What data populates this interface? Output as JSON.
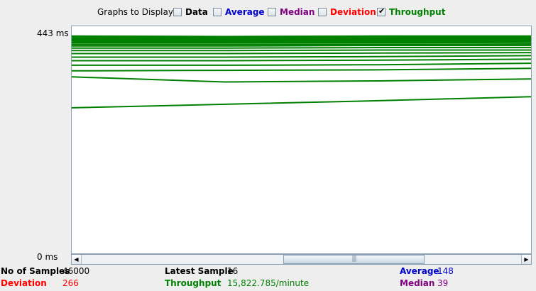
{
  "legend": {
    "title": "Graphs to Display",
    "items": [
      {
        "key": "data",
        "label": "Data",
        "checked": false,
        "color": "#000000"
      },
      {
        "key": "average",
        "label": "Average",
        "checked": false,
        "color": "#0000cc"
      },
      {
        "key": "median",
        "label": "Median",
        "checked": false,
        "color": "#800080"
      },
      {
        "key": "deviation",
        "label": "Deviation",
        "checked": false,
        "color": "#ff0000"
      },
      {
        "key": "throughput",
        "label": "Throughput",
        "checked": true,
        "color": "#008000"
      }
    ]
  },
  "axis": {
    "max_label": "443 ms",
    "min_label": "0 ms"
  },
  "chart_data": {
    "type": "line",
    "ylim": [
      0,
      443
    ],
    "series_color": "#008000",
    "series": [
      {
        "values": [
          430,
          429,
          430,
          430
        ]
      },
      {
        "values": [
          426,
          426,
          426,
          427
        ]
      },
      {
        "values": [
          423,
          423,
          423,
          424
        ]
      },
      {
        "values": [
          420,
          420,
          420,
          421
        ]
      },
      {
        "values": [
          417,
          417,
          417,
          418
        ]
      },
      {
        "values": [
          414,
          414,
          414,
          415
        ]
      },
      {
        "values": [
          411,
          411,
          412,
          412
        ]
      },
      {
        "values": [
          407,
          407,
          408,
          408
        ]
      },
      {
        "values": [
          402,
          402,
          403,
          403
        ]
      },
      {
        "values": [
          396,
          396,
          397,
          398
        ]
      },
      {
        "values": [
          389,
          389,
          390,
          392
        ]
      },
      {
        "values": [
          382,
          382,
          383,
          385
        ]
      },
      {
        "values": [
          373,
          373,
          374,
          377
        ]
      },
      {
        "values": [
          362,
          363,
          364,
          367
        ]
      },
      {
        "values": [
          350,
          340,
          342,
          346
        ]
      },
      {
        "values": [
          289,
          296,
          303,
          311
        ]
      }
    ]
  },
  "stats": {
    "samples": {
      "label": "No of Samples",
      "value": "46000"
    },
    "latest": {
      "label": "Latest Sample",
      "value": "16"
    },
    "average": {
      "label": "Average",
      "value": "148"
    },
    "deviation": {
      "label": "Deviation",
      "value": "266"
    },
    "throughput": {
      "label": "Throughput",
      "value": "15,822.785/minute"
    },
    "median": {
      "label": "Median",
      "value": "39"
    }
  }
}
